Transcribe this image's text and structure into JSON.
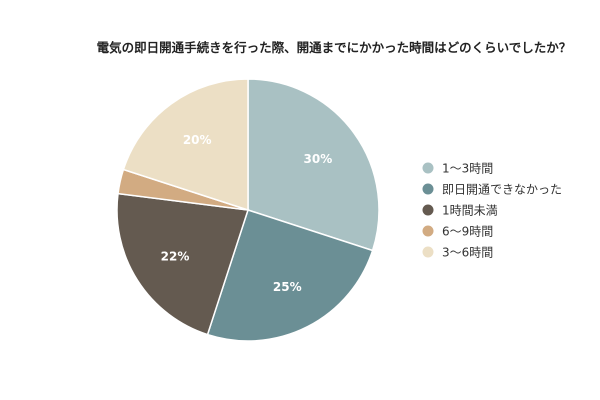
{
  "chart_data": {
    "type": "pie",
    "title": "電気の即日開通手続きを行った際、開通までにかかった時間はどのくらいでしたか？",
    "legend_position": "right",
    "categories": [
      "1〜3時間",
      "即日開通できなかった",
      "1時間未満",
      "6〜9時間",
      "3〜6時間"
    ],
    "values": [
      30,
      25,
      22,
      3,
      20
    ],
    "data_labels": [
      "30%",
      "25%",
      "22%",
      "",
      "20%"
    ],
    "colors": [
      "#a9c1c3",
      "#6b8f95",
      "#645a50",
      "#d2ab82",
      "#ecdfc5"
    ],
    "unit": "%"
  }
}
